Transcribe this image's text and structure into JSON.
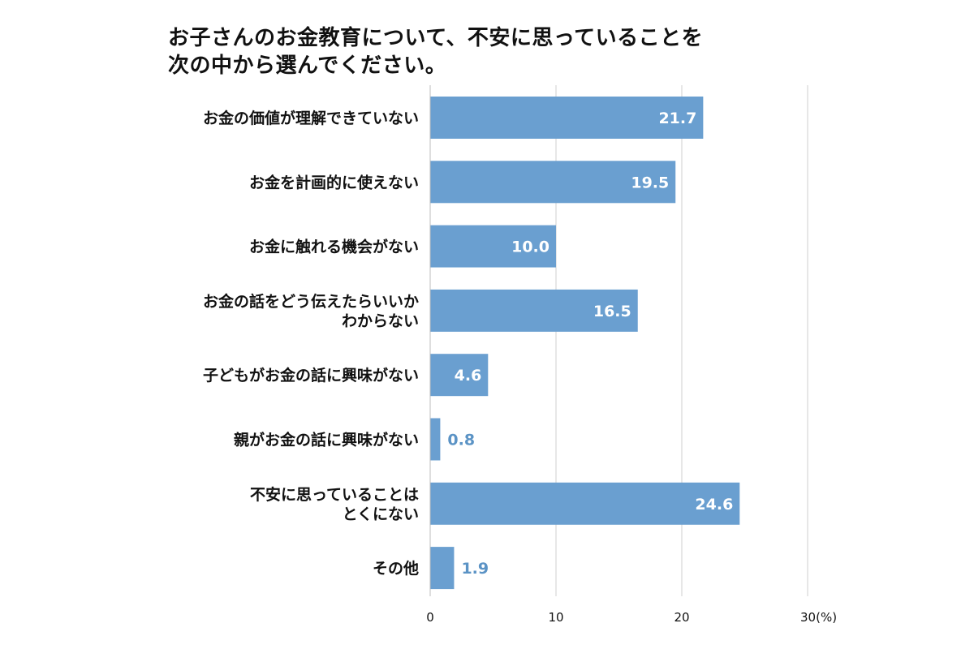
{
  "title": {
    "line1": "お子さんのお金教育について、不安に思っていることを",
    "line2": "次の中から選んでください。"
  },
  "chart_data": {
    "type": "bar",
    "orientation": "horizontal",
    "categories": [
      [
        "お金の価値が理解できていない"
      ],
      [
        "お金を計画的に使えない"
      ],
      [
        "お金に触れる機会がない"
      ],
      [
        "お金の話をどう伝えたらいいか",
        "わからない"
      ],
      [
        "子どもがお金の話に興味がない"
      ],
      [
        "親がお金の話に興味がない"
      ],
      [
        "不安に思っていることは",
        "とくにない"
      ],
      [
        "その他"
      ]
    ],
    "values": [
      21.7,
      19.5,
      10.0,
      16.5,
      4.6,
      0.8,
      24.6,
      1.9
    ],
    "value_labels": [
      "21.7",
      "19.5",
      "10.0",
      "16.5",
      "4.6",
      "0.8",
      "24.6",
      "1.9"
    ],
    "xlim": [
      0,
      30
    ],
    "x_ticks": [
      0,
      10,
      20,
      30
    ],
    "x_tick_labels": [
      "0",
      "10",
      "20",
      "30(%)"
    ],
    "grid": true,
    "bar_color": "#6a9fd0",
    "outside_label_color": "#5b93c5",
    "grid_color": "#cfcfcf"
  }
}
